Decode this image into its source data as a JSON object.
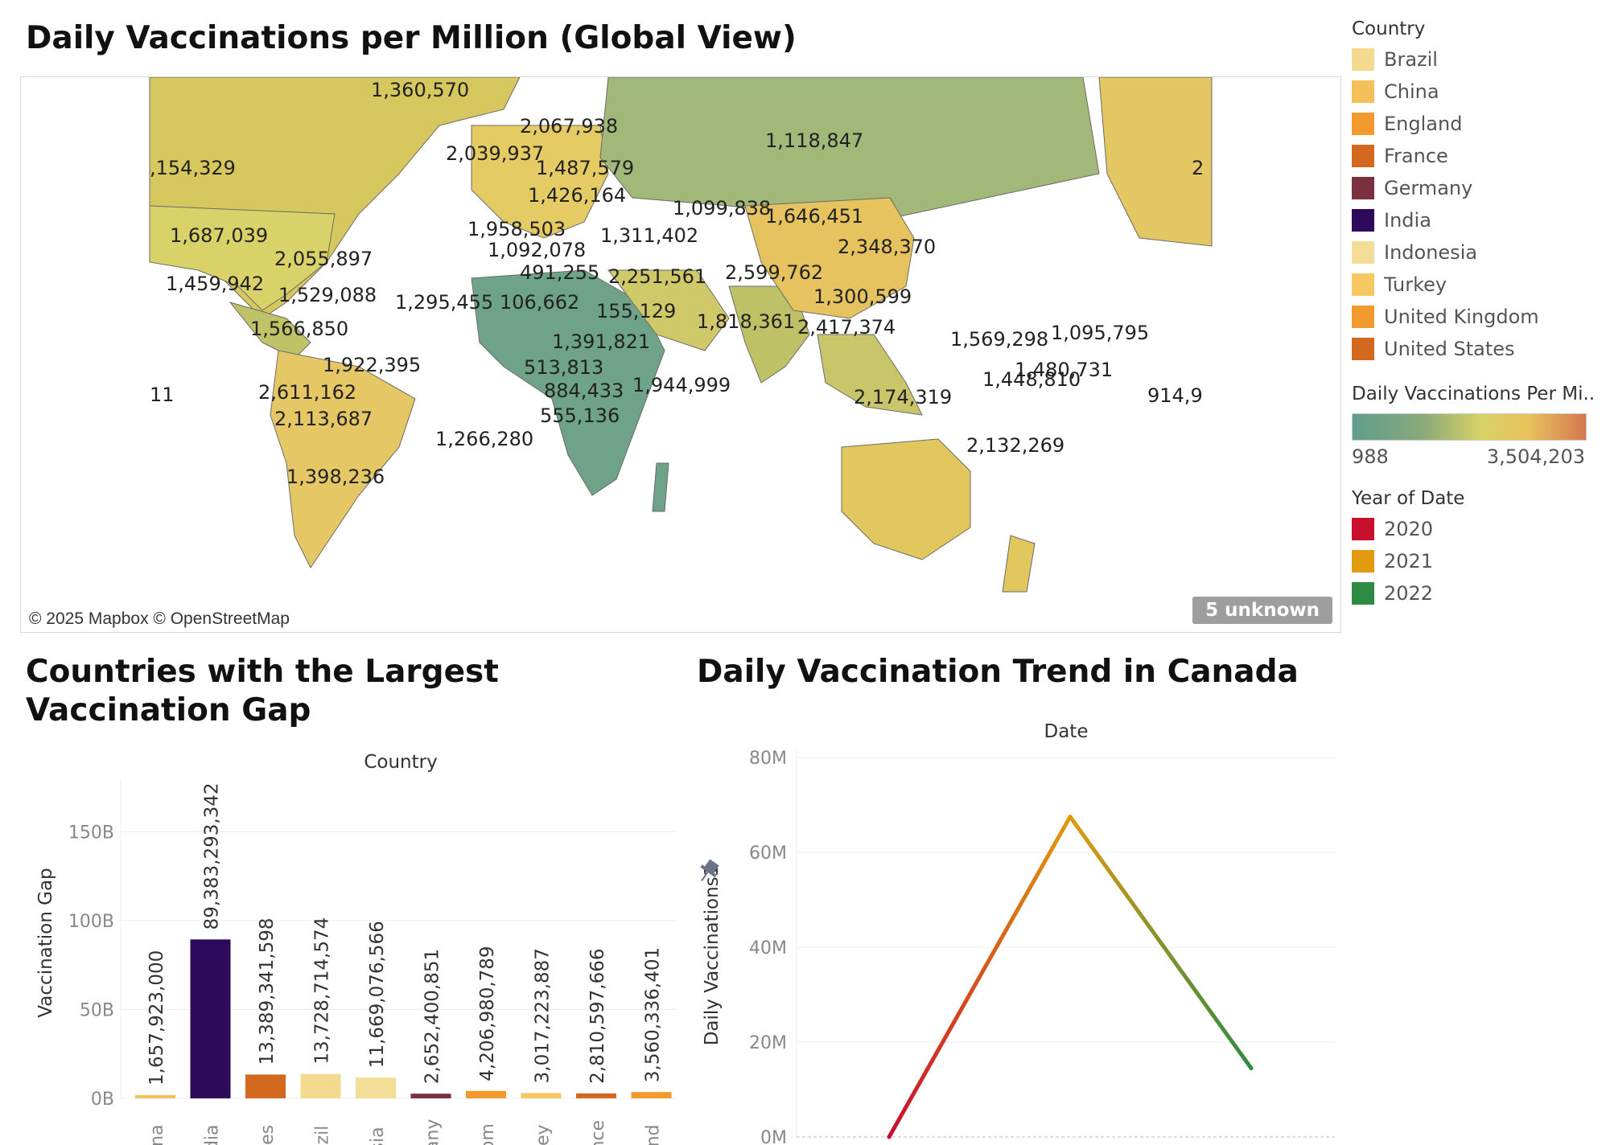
{
  "map": {
    "title": "Daily Vaccinations per Million (Global View)",
    "attribution": "© 2025 Mapbox © OpenStreetMap",
    "unknown_badge": "5 unknown",
    "labels": [
      {
        "text": "1,360,570"
      },
      {
        "text": "2,067,938"
      },
      {
        "text": "2,039,937"
      },
      {
        "text": "1,118,847"
      },
      {
        "text": ",154,329"
      },
      {
        "text": "1,487,579"
      },
      {
        "text": "2"
      },
      {
        "text": "1,426,164"
      },
      {
        "text": "1,099,838"
      },
      {
        "text": "1,646,451"
      },
      {
        "text": "1,958,503"
      },
      {
        "text": "1,311,402"
      },
      {
        "text": "1,687,039"
      },
      {
        "text": "1,092,078"
      },
      {
        "text": "2,348,370"
      },
      {
        "text": "2,055,897"
      },
      {
        "text": "491,255"
      },
      {
        "text": "2,251,561"
      },
      {
        "text": "2,599,762"
      },
      {
        "text": "1,459,942"
      },
      {
        "text": "1,529,088"
      },
      {
        "text": "1,295,455"
      },
      {
        "text": "106,662"
      },
      {
        "text": "1,300,599"
      },
      {
        "text": "155,129"
      },
      {
        "text": "1,818,361"
      },
      {
        "text": "2,417,374"
      },
      {
        "text": "1,566,850"
      },
      {
        "text": "1,569,298"
      },
      {
        "text": "1,095,795"
      },
      {
        "text": "1,391,821"
      },
      {
        "text": "1,922,395"
      },
      {
        "text": "513,813"
      },
      {
        "text": "1,480,731"
      },
      {
        "text": "1,448,810"
      },
      {
        "text": "1,944,999"
      },
      {
        "text": "11"
      },
      {
        "text": "884,433"
      },
      {
        "text": "2,611,162"
      },
      {
        "text": "2,174,319"
      },
      {
        "text": "914,9"
      },
      {
        "text": "555,136"
      },
      {
        "text": "2,113,687"
      },
      {
        "text": "1,266,280"
      },
      {
        "text": "2,132,269"
      },
      {
        "text": "1,398,236"
      }
    ]
  },
  "legend": {
    "country_title": "Country",
    "countries": [
      {
        "name": "Brazil",
        "color": "#f3da8f"
      },
      {
        "name": "China",
        "color": "#f4c05a"
      },
      {
        "name": "England",
        "color": "#f29a2e"
      },
      {
        "name": "France",
        "color": "#d2691e"
      },
      {
        "name": "Germany",
        "color": "#7b3040"
      },
      {
        "name": "India",
        "color": "#2e0a5c"
      },
      {
        "name": "Indonesia",
        "color": "#f3dd97"
      },
      {
        "name": "Turkey",
        "color": "#f5c864"
      },
      {
        "name": "United Kingdom",
        "color": "#f29a2e"
      },
      {
        "name": "United States",
        "color": "#d2691e"
      }
    ],
    "gradient_title": "Daily Vaccinations Per Mi..",
    "gradient_min": "988",
    "gradient_max": "3,504,203",
    "year_title": "Year of Date",
    "years": [
      {
        "name": "2020",
        "color": "#c8102e"
      },
      {
        "name": "2021",
        "color": "#e09b0e"
      },
      {
        "name": "2022",
        "color": "#2e8b44"
      }
    ]
  },
  "chart_data": [
    {
      "type": "bar",
      "title": "Countries with the Largest Vaccination Gap",
      "xlabel": "Country",
      "ylabel": "Vaccination Gap",
      "ylim": [
        0,
        175000000000
      ],
      "yticks": [
        {
          "v": 0,
          "label": "0B"
        },
        {
          "v": 50000000000,
          "label": "50B"
        },
        {
          "v": 100000000000,
          "label": "100B"
        },
        {
          "v": 150000000000,
          "label": "150B"
        }
      ],
      "categories": [
        "hina",
        "ndia",
        "ates",
        "razil",
        "esia",
        "nany",
        "dom",
        "rkey",
        "ance",
        "land"
      ],
      "values": [
        1657923000,
        89383293342,
        13389341598,
        13728714574,
        11669076566,
        2652400851,
        4206980789,
        3017223887,
        2810597666,
        3560336401
      ],
      "data_labels": [
        "1,657,923,000",
        "89,383,293,342",
        "13,389,341,598",
        "13,728,714,574",
        "11,669,076,566",
        "2,652,400,851",
        "4,206,980,789",
        "3,017,223,887",
        "2,810,597,666",
        "3,560,336,401"
      ],
      "colors": [
        "#f4c05a",
        "#2e0a5c",
        "#d2691e",
        "#f3da8f",
        "#f3dd97",
        "#7b3040",
        "#f29a2e",
        "#f5c864",
        "#d2691e",
        "#f29a2e"
      ]
    },
    {
      "type": "line",
      "title": "Daily Vaccination Trend in Canada",
      "xlabel": "Date",
      "ylabel": "Daily Vaccinations1",
      "ylim": [
        0,
        80000000
      ],
      "yticks": [
        {
          "v": 0,
          "label": "0M"
        },
        {
          "v": 20000000,
          "label": "20M"
        },
        {
          "v": 40000000,
          "label": "40M"
        },
        {
          "v": 60000000,
          "label": "60M"
        },
        {
          "v": 80000000,
          "label": "80M"
        }
      ],
      "x": [
        "2020",
        "2021",
        "2022"
      ],
      "values": [
        0,
        67500000,
        14500000
      ],
      "colors": [
        "#c8102e",
        "#e09b0e",
        "#2e8b44"
      ]
    }
  ]
}
